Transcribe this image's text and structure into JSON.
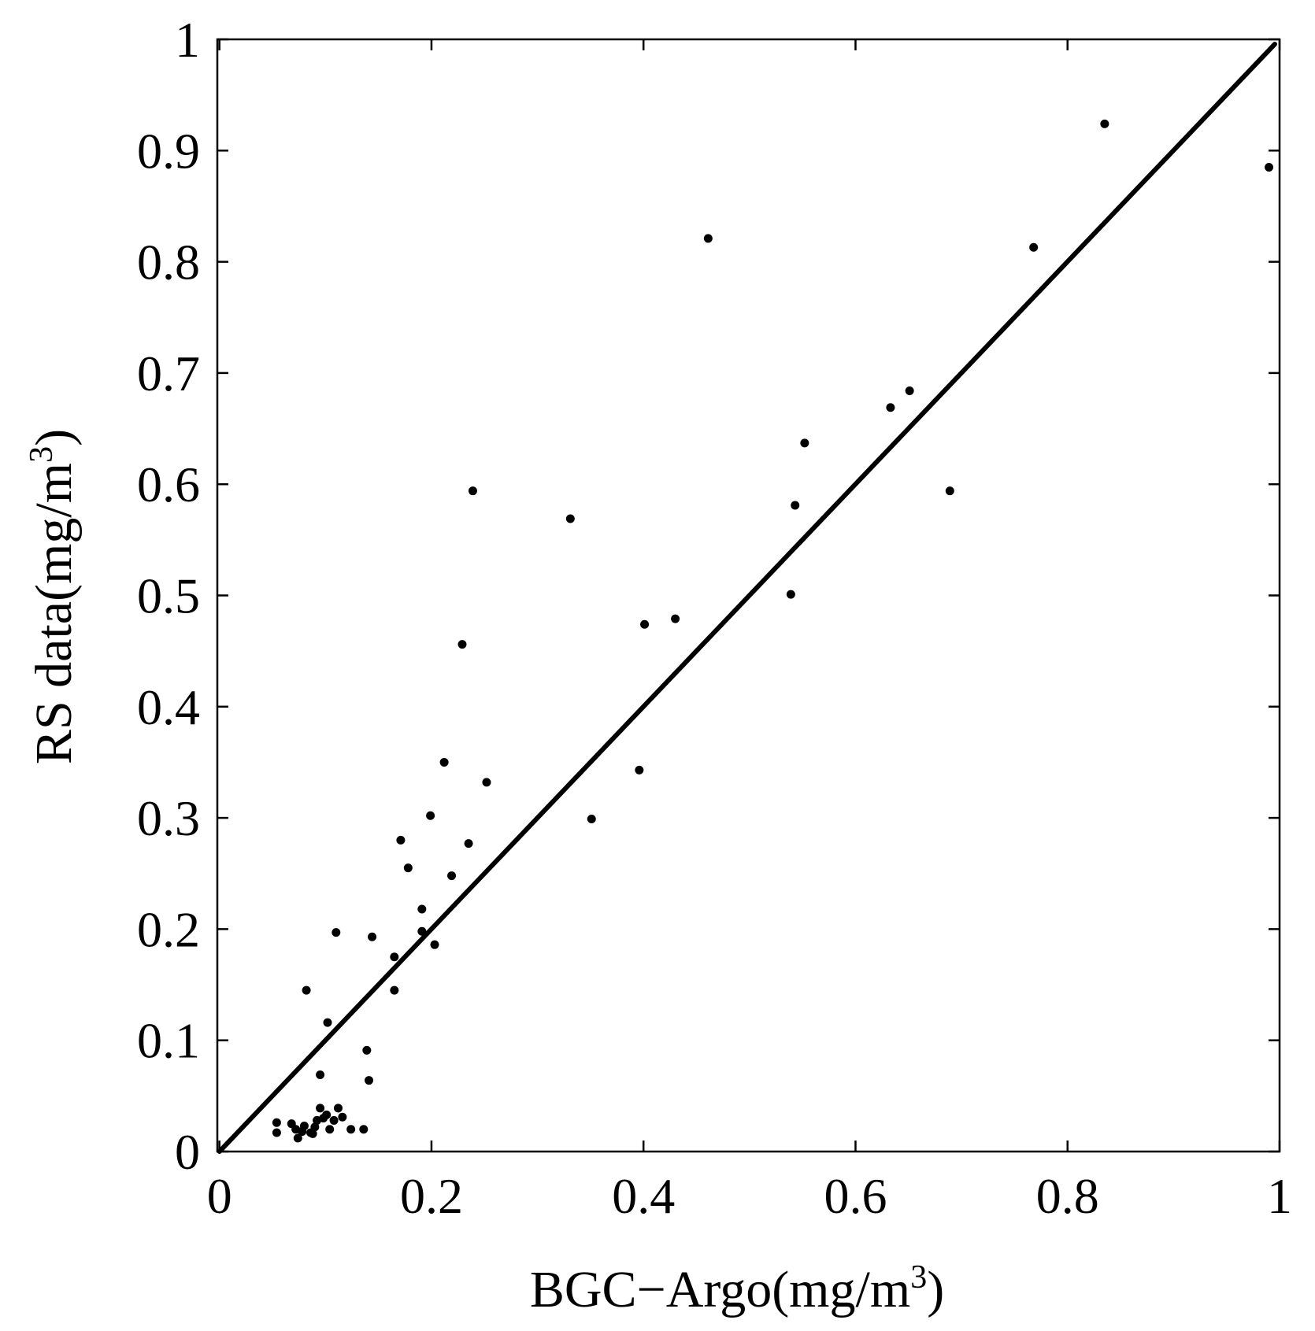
{
  "chart_data": {
    "type": "scatter",
    "xlabel": {
      "text": "BGC−Argo(mg/m",
      "sup": "3",
      "close": ")"
    },
    "ylabel": {
      "text": "RS data(mg/m",
      "sup": "3",
      "close": ")"
    },
    "xlim": [
      -0.002,
      1.0
    ],
    "ylim": [
      0.0,
      1.0
    ],
    "xticks": [
      0,
      0.2,
      0.4,
      0.6,
      0.8,
      1
    ],
    "xtick_labels": [
      "0",
      "0.2",
      "0.4",
      "0.6",
      "0.8",
      "1"
    ],
    "yticks": [
      0,
      0.1,
      0.2,
      0.3,
      0.4,
      0.5,
      0.6,
      0.7,
      0.8,
      0.9,
      1
    ],
    "ytick_labels": [
      "0",
      "0.1",
      "0.2",
      "0.3",
      "0.4",
      "0.5",
      "0.6",
      "0.7",
      "0.8",
      "0.9",
      "1"
    ],
    "grid": false,
    "reference_line": {
      "x": [
        0,
        1
      ],
      "y": [
        0,
        1
      ],
      "color": "#000000"
    },
    "point_color": "#000000",
    "points": [
      [
        0.99,
        0.885
      ],
      [
        0.835,
        0.924
      ],
      [
        0.768,
        0.813
      ],
      [
        0.461,
        0.821
      ],
      [
        0.651,
        0.684
      ],
      [
        0.633,
        0.669
      ],
      [
        0.552,
        0.637
      ],
      [
        0.689,
        0.594
      ],
      [
        0.543,
        0.581
      ],
      [
        0.539,
        0.501
      ],
      [
        0.43,
        0.479
      ],
      [
        0.401,
        0.474
      ],
      [
        0.396,
        0.343
      ],
      [
        0.351,
        0.299
      ],
      [
        0.331,
        0.569
      ],
      [
        0.239,
        0.594
      ],
      [
        0.229,
        0.456
      ],
      [
        0.212,
        0.35
      ],
      [
        0.252,
        0.332
      ],
      [
        0.199,
        0.302
      ],
      [
        0.235,
        0.277
      ],
      [
        0.171,
        0.28
      ],
      [
        0.178,
        0.255
      ],
      [
        0.219,
        0.248
      ],
      [
        0.191,
        0.218
      ],
      [
        0.191,
        0.198
      ],
      [
        0.203,
        0.186
      ],
      [
        0.144,
        0.193
      ],
      [
        0.165,
        0.175
      ],
      [
        0.165,
        0.145
      ],
      [
        0.11,
        0.197
      ],
      [
        0.082,
        0.145
      ],
      [
        0.102,
        0.116
      ],
      [
        0.095,
        0.069
      ],
      [
        0.139,
        0.091
      ],
      [
        0.141,
        0.064
      ],
      [
        0.054,
        0.026
      ],
      [
        0.054,
        0.017
      ],
      [
        0.068,
        0.025
      ],
      [
        0.072,
        0.02
      ],
      [
        0.074,
        0.012
      ],
      [
        0.08,
        0.023
      ],
      [
        0.086,
        0.017
      ],
      [
        0.09,
        0.022
      ],
      [
        0.092,
        0.028
      ],
      [
        0.095,
        0.039
      ],
      [
        0.098,
        0.03
      ],
      [
        0.101,
        0.033
      ],
      [
        0.104,
        0.02
      ],
      [
        0.108,
        0.028
      ],
      [
        0.112,
        0.039
      ],
      [
        0.116,
        0.031
      ],
      [
        0.124,
        0.02
      ],
      [
        0.136,
        0.02
      ],
      [
        0.088,
        0.016
      ],
      [
        0.078,
        0.018
      ]
    ]
  }
}
